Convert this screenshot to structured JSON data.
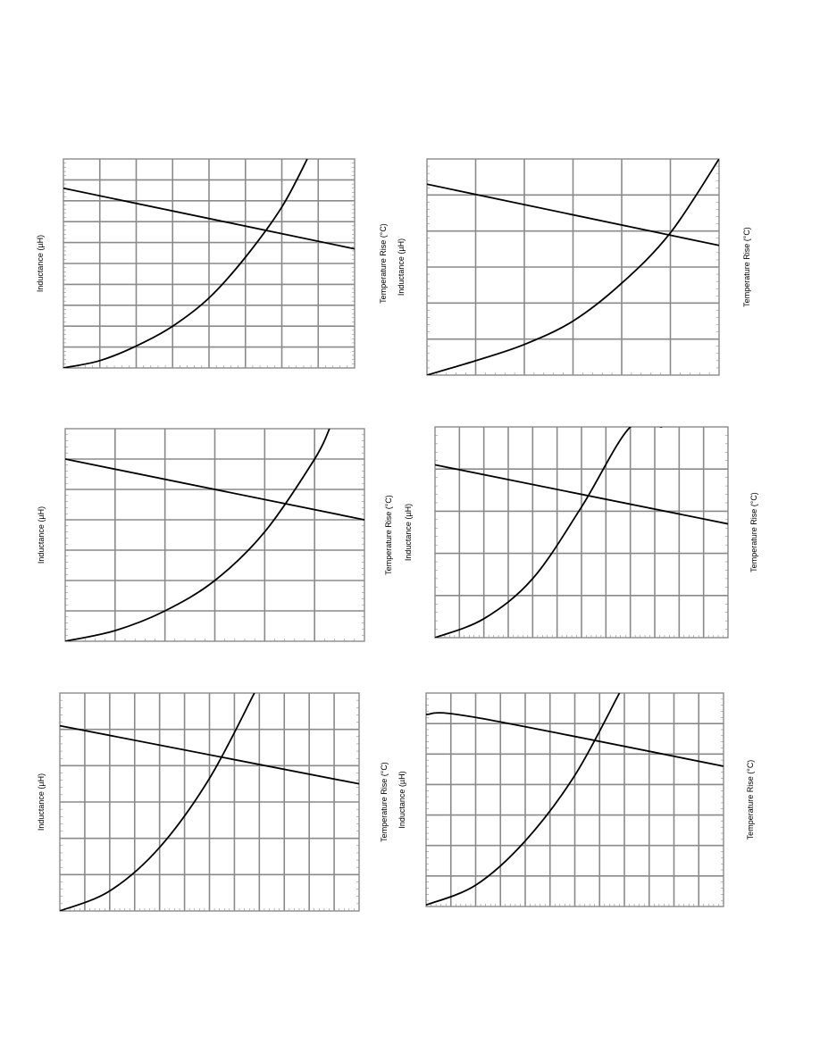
{
  "chart_data": [
    {
      "type": "line",
      "title": "",
      "ylabel": "Inductance (µH)",
      "y2label": "Temperature Rise (°C)",
      "xlim": [
        0,
        8
      ],
      "ylim": [
        0,
        10
      ],
      "y2lim": [
        0,
        10
      ],
      "grid": true,
      "series": [
        {
          "axis": "left",
          "x": [
            0,
            8
          ],
          "y": [
            8.6,
            5.7
          ]
        },
        {
          "axis": "right",
          "x": [
            0,
            1,
            2,
            3,
            4,
            5,
            6,
            6.7
          ],
          "y": [
            0,
            0.35,
            1.05,
            2.0,
            3.35,
            5.3,
            7.7,
            10
          ]
        }
      ]
    },
    {
      "type": "line",
      "title": "",
      "ylabel": "Inductance (µH)",
      "y2label": "Temperature Rise (°C)",
      "xlim": [
        0,
        6
      ],
      "ylim": [
        0,
        6
      ],
      "y2lim": [
        0,
        6
      ],
      "grid": true,
      "series": [
        {
          "axis": "left",
          "x": [
            0,
            6
          ],
          "y": [
            5.3,
            3.6
          ]
        },
        {
          "axis": "right",
          "x": [
            0,
            1,
            2,
            3,
            4,
            5,
            6
          ],
          "y": [
            0,
            0.4,
            0.85,
            1.5,
            2.55,
            3.95,
            6
          ]
        }
      ]
    },
    {
      "type": "line",
      "title": "",
      "ylabel": "Inductance (µH)",
      "y2label": "Temperature Rise (°C)",
      "xlim": [
        0,
        6
      ],
      "ylim": [
        0,
        7
      ],
      "y2lim": [
        0,
        7
      ],
      "grid": true,
      "series": [
        {
          "axis": "left",
          "x": [
            0,
            6
          ],
          "y": [
            6.0,
            4.0
          ]
        },
        {
          "axis": "right",
          "x": [
            0,
            1,
            2,
            3,
            4,
            5,
            5.3
          ],
          "y": [
            0,
            0.35,
            1.0,
            2.0,
            3.6,
            6.0,
            7.0
          ]
        }
      ]
    },
    {
      "type": "line",
      "title": "",
      "ylabel": "Inductance (µH)",
      "y2label": "Temperature Rise (°C)",
      "xlim": [
        0,
        12
      ],
      "ylim": [
        0,
        5
      ],
      "y2lim": [
        0,
        5
      ],
      "grid": true,
      "series": [
        {
          "axis": "left",
          "x": [
            0,
            12
          ],
          "y": [
            4.1,
            2.7
          ]
        },
        {
          "axis": "right",
          "x": [
            0,
            2,
            4,
            6,
            8,
            9.3
          ],
          "y": [
            0,
            0.45,
            1.4,
            3.1,
            5.0,
            5.0
          ]
        }
      ]
    },
    {
      "type": "line",
      "title": "",
      "ylabel": "Inductance (µH)",
      "y2label": "Temperature Rise (°C)",
      "xlim": [
        0,
        12
      ],
      "ylim": [
        0,
        6
      ],
      "y2lim": [
        0,
        6
      ],
      "grid": true,
      "series": [
        {
          "axis": "left",
          "x": [
            0,
            12
          ],
          "y": [
            5.1,
            3.5
          ]
        },
        {
          "axis": "right",
          "x": [
            0,
            2,
            4,
            6,
            7.8
          ],
          "y": [
            0,
            0.55,
            1.75,
            3.65,
            6.0
          ]
        }
      ]
    },
    {
      "type": "line",
      "title": "",
      "ylabel": "Inductance (µH)",
      "y2label": "Temperature Rise (°C)",
      "xlim": [
        0,
        12
      ],
      "ylim": [
        0,
        7
      ],
      "y2lim": [
        0,
        7
      ],
      "grid": true,
      "series": [
        {
          "axis": "left",
          "x": [
            0,
            2,
            12
          ],
          "y": [
            6.3,
            6.2,
            4.6
          ]
        },
        {
          "axis": "right",
          "x": [
            0,
            2,
            4,
            6,
            7.8
          ],
          "y": [
            0.05,
            0.7,
            2.15,
            4.3,
            7.0
          ]
        }
      ]
    }
  ]
}
